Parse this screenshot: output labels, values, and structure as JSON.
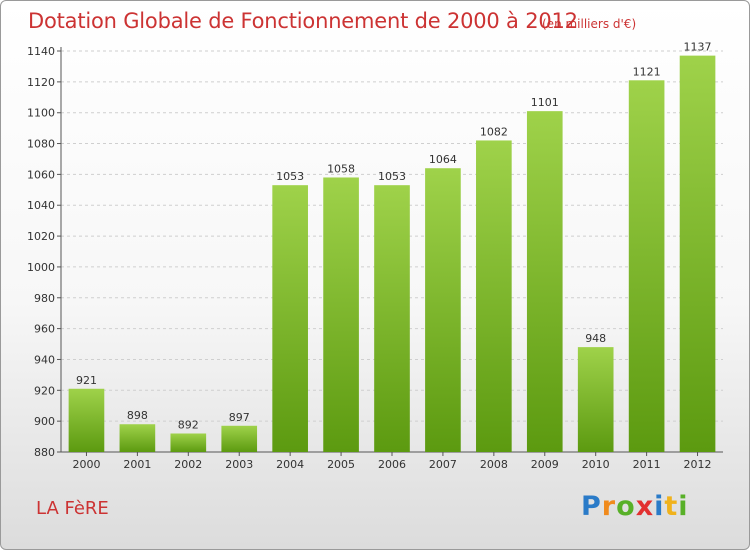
{
  "header": {
    "title": "Dotation Globale de Fonctionnement de 2000 à 2012",
    "unit": "(en milliers d'€)"
  },
  "footer": {
    "commune": "LA FèRE",
    "logo": {
      "p": "P",
      "r": "r",
      "o": "o",
      "x": "x",
      "i1": "i",
      "t": "t",
      "i2": "i"
    }
  },
  "colors": {
    "text_accent": "#cc3333",
    "bar_light": "#9fd24a",
    "bar_dark": "#5c9a10"
  },
  "chart_data": {
    "type": "bar",
    "title": "Dotation Globale de Fonctionnement de 2000 à 2012",
    "subtitle": "(en milliers d'€)",
    "xlabel": "",
    "ylabel": "",
    "categories": [
      "2000",
      "2001",
      "2002",
      "2003",
      "2004",
      "2005",
      "2006",
      "2007",
      "2008",
      "2009",
      "2010",
      "2011",
      "2012"
    ],
    "values": [
      921,
      898,
      892,
      897,
      1053,
      1058,
      1053,
      1064,
      1082,
      1101,
      948,
      1121,
      1137
    ],
    "ylim": [
      880,
      1140
    ],
    "yticks": [
      880,
      900,
      920,
      940,
      960,
      980,
      1000,
      1020,
      1040,
      1060,
      1080,
      1100,
      1120,
      1140
    ],
    "grid": "horizontal-dashed",
    "legend": "none"
  }
}
